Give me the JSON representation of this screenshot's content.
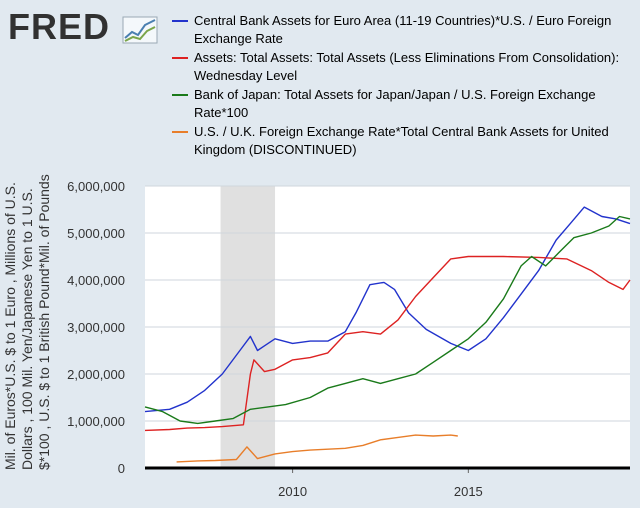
{
  "logo": {
    "text": "FRED",
    "icon": "chart-line-icon"
  },
  "chart_data": {
    "type": "line",
    "xlabel": "",
    "ylabel": "Mil. of Euros*U.S. $ to 1 Euro , Millions of U.S. Dollars , 100 Mil. Yen/Japanese Yen to 1 U.S. $*100 , U.S. $ to 1 British Pound*Mil. of Pounds",
    "x_range": [
      2005.8,
      2019.6
    ],
    "ylim": [
      0,
      6000000
    ],
    "x_ticks": [
      {
        "value": 2010,
        "label": "2010"
      },
      {
        "value": 2015,
        "label": "2015"
      }
    ],
    "y_ticks": [
      {
        "value": 0,
        "label": "0"
      },
      {
        "value": 1000000,
        "label": "1,000,000"
      },
      {
        "value": 2000000,
        "label": "2,000,000"
      },
      {
        "value": 3000000,
        "label": "3,000,000"
      },
      {
        "value": 4000000,
        "label": "4,000,000"
      },
      {
        "value": 5000000,
        "label": "5,000,000"
      },
      {
        "value": 6000000,
        "label": "6,000,000"
      }
    ],
    "recession": [
      2007.95,
      2009.5
    ],
    "grid": true,
    "legend_position": "top",
    "series": [
      {
        "name": "Central Bank Assets for Euro Area (11-19 Countries)*U.S. / Euro Foreign Exchange Rate",
        "color": "#2233cc",
        "points": [
          [
            2005.8,
            1200000
          ],
          [
            2006.5,
            1250000
          ],
          [
            2007.0,
            1400000
          ],
          [
            2007.5,
            1650000
          ],
          [
            2008.0,
            2000000
          ],
          [
            2008.5,
            2500000
          ],
          [
            2008.8,
            2800000
          ],
          [
            2009.0,
            2500000
          ],
          [
            2009.2,
            2600000
          ],
          [
            2009.5,
            2750000
          ],
          [
            2010.0,
            2650000
          ],
          [
            2010.5,
            2700000
          ],
          [
            2011.0,
            2700000
          ],
          [
            2011.5,
            2900000
          ],
          [
            2011.8,
            3300000
          ],
          [
            2012.2,
            3900000
          ],
          [
            2012.6,
            3950000
          ],
          [
            2012.9,
            3800000
          ],
          [
            2013.3,
            3300000
          ],
          [
            2013.8,
            2950000
          ],
          [
            2014.5,
            2650000
          ],
          [
            2015.0,
            2500000
          ],
          [
            2015.5,
            2750000
          ],
          [
            2016.0,
            3200000
          ],
          [
            2016.5,
            3700000
          ],
          [
            2017.0,
            4200000
          ],
          [
            2017.5,
            4850000
          ],
          [
            2017.9,
            5200000
          ],
          [
            2018.3,
            5550000
          ],
          [
            2018.8,
            5350000
          ],
          [
            2019.2,
            5300000
          ],
          [
            2019.6,
            5200000
          ]
        ]
      },
      {
        "name": "Assets: Total Assets: Total Assets (Less Eliminations From Consolidation): Wednesday Level",
        "color": "#dd2222",
        "points": [
          [
            2005.8,
            800000
          ],
          [
            2006.5,
            820000
          ],
          [
            2007.0,
            850000
          ],
          [
            2007.5,
            860000
          ],
          [
            2008.0,
            880000
          ],
          [
            2008.6,
            920000
          ],
          [
            2008.8,
            2000000
          ],
          [
            2008.9,
            2300000
          ],
          [
            2009.2,
            2050000
          ],
          [
            2009.5,
            2100000
          ],
          [
            2010.0,
            2300000
          ],
          [
            2010.5,
            2350000
          ],
          [
            2011.0,
            2450000
          ],
          [
            2011.5,
            2850000
          ],
          [
            2012.0,
            2900000
          ],
          [
            2012.5,
            2850000
          ],
          [
            2013.0,
            3150000
          ],
          [
            2013.5,
            3650000
          ],
          [
            2014.0,
            4050000
          ],
          [
            2014.5,
            4450000
          ],
          [
            2015.0,
            4500000
          ],
          [
            2016.0,
            4500000
          ],
          [
            2017.0,
            4480000
          ],
          [
            2017.8,
            4450000
          ],
          [
            2018.5,
            4200000
          ],
          [
            2019.0,
            3950000
          ],
          [
            2019.4,
            3800000
          ],
          [
            2019.6,
            4000000
          ]
        ]
      },
      {
        "name": "Bank of Japan: Total Assets for Japan/Japan / U.S. Foreign Exchange Rate*100",
        "color": "#1a7a1a",
        "points": [
          [
            2005.8,
            1300000
          ],
          [
            2006.3,
            1200000
          ],
          [
            2006.8,
            1000000
          ],
          [
            2007.3,
            950000
          ],
          [
            2007.8,
            1000000
          ],
          [
            2008.3,
            1050000
          ],
          [
            2008.8,
            1250000
          ],
          [
            2009.3,
            1300000
          ],
          [
            2009.8,
            1350000
          ],
          [
            2010.5,
            1500000
          ],
          [
            2011.0,
            1700000
          ],
          [
            2011.5,
            1800000
          ],
          [
            2012.0,
            1900000
          ],
          [
            2012.5,
            1800000
          ],
          [
            2013.0,
            1900000
          ],
          [
            2013.5,
            2000000
          ],
          [
            2014.0,
            2250000
          ],
          [
            2014.5,
            2500000
          ],
          [
            2015.0,
            2750000
          ],
          [
            2015.5,
            3100000
          ],
          [
            2016.0,
            3600000
          ],
          [
            2016.5,
            4300000
          ],
          [
            2016.8,
            4500000
          ],
          [
            2017.2,
            4300000
          ],
          [
            2017.6,
            4600000
          ],
          [
            2018.0,
            4900000
          ],
          [
            2018.5,
            5000000
          ],
          [
            2019.0,
            5150000
          ],
          [
            2019.3,
            5350000
          ],
          [
            2019.6,
            5300000
          ]
        ]
      },
      {
        "name": "U.S. / U.K. Foreign Exchange Rate*Total Central Bank Assets for United Kingdom (DISCONTINUED)",
        "color": "#e87e2a",
        "points": [
          [
            2006.7,
            130000
          ],
          [
            2007.3,
            150000
          ],
          [
            2007.8,
            160000
          ],
          [
            2008.4,
            180000
          ],
          [
            2008.7,
            450000
          ],
          [
            2009.0,
            200000
          ],
          [
            2009.5,
            300000
          ],
          [
            2010.0,
            350000
          ],
          [
            2010.5,
            380000
          ],
          [
            2011.0,
            400000
          ],
          [
            2011.5,
            420000
          ],
          [
            2012.0,
            480000
          ],
          [
            2012.5,
            600000
          ],
          [
            2013.0,
            650000
          ],
          [
            2013.5,
            700000
          ],
          [
            2014.0,
            680000
          ],
          [
            2014.5,
            700000
          ],
          [
            2014.7,
            680000
          ]
        ]
      }
    ]
  }
}
